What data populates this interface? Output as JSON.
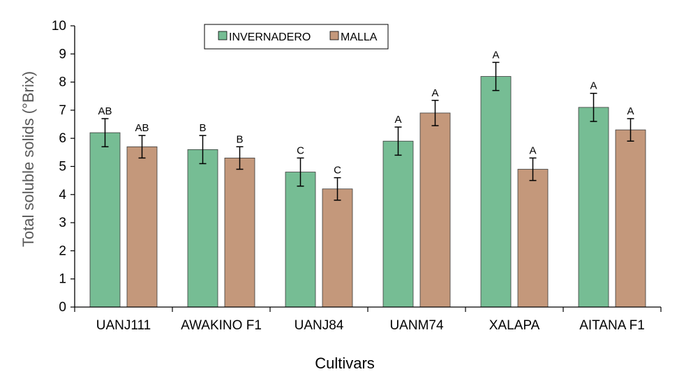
{
  "chart_data": {
    "type": "bar",
    "title": "",
    "xlabel": "Cultivars",
    "ylabel": "Total soluble solids (°Brix)",
    "ylim": [
      0,
      10
    ],
    "yticks": [
      "0",
      "1",
      "2",
      "3",
      "4",
      "5",
      "6",
      "7",
      "8",
      "9",
      "10"
    ],
    "legend_position": "top-left",
    "categories": [
      "UANJ111",
      "AWAKINO F1",
      "UANJ84",
      "UANM74",
      "XALAPA",
      "AITANA F1"
    ],
    "series": [
      {
        "name": "INVERNADERO",
        "color": "#76bd94",
        "values": [
          6.2,
          5.6,
          4.8,
          5.9,
          8.2,
          7.1
        ],
        "errors": [
          0.5,
          0.5,
          0.5,
          0.5,
          0.5,
          0.5
        ],
        "labels": [
          "AB",
          "B",
          "C",
          "A",
          "A",
          "A"
        ]
      },
      {
        "name": "MALLA",
        "color": "#c4987b",
        "values": [
          5.7,
          5.3,
          4.2,
          6.9,
          4.9,
          6.3
        ],
        "errors": [
          0.4,
          0.4,
          0.4,
          0.45,
          0.4,
          0.4
        ],
        "labels": [
          "AB",
          "B",
          "C",
          "A",
          "A",
          "A"
        ]
      }
    ]
  }
}
